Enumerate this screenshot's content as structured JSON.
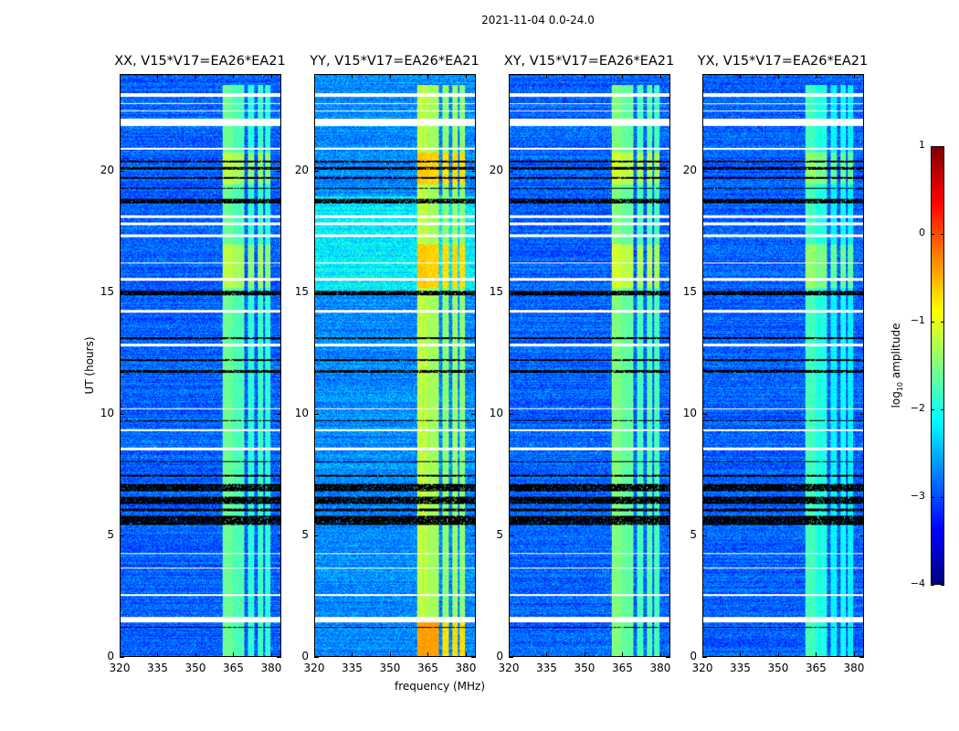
{
  "chart_data": {
    "type": "heatmap",
    "title": "2021-11-04 0.0-24.0",
    "xlabel": "frequency (MHz)",
    "ylabel": "UT (hours)",
    "xlim": [
      320,
      384
    ],
    "ylim": [
      0,
      24
    ],
    "xticks": [
      320,
      335,
      350,
      365,
      380
    ],
    "yticks": [
      0,
      5,
      10,
      15,
      20
    ],
    "colorbar": {
      "label": "log10 amplitude",
      "label_main": "log",
      "label_sub": "10",
      "label_rest": " amplitude",
      "range": [
        -4,
        1
      ],
      "ticks": [
        1,
        0,
        -1,
        -2,
        -3,
        -4
      ],
      "tick_labels": [
        "1",
        "0",
        "−1",
        "−2",
        "−3",
        "−4"
      ],
      "colormap": "jet"
    },
    "panels": [
      {
        "title": "XX, V15*V17=EA26*EA21",
        "base": -2.9,
        "band_level": -1.6,
        "high_level": -1.2,
        "bg_boost": 0
      },
      {
        "title": "YY, V15*V17=EA26*EA21",
        "base": -2.7,
        "band_level": -1.2,
        "high_level": -0.6,
        "bg_boost": 0.5
      },
      {
        "title": "XY, V15*V17=EA26*EA21",
        "base": -2.9,
        "band_level": -1.5,
        "high_level": -1.1,
        "bg_boost": 0
      },
      {
        "title": "YX, V15*V17=EA26*EA21",
        "base": -2.9,
        "band_level": -1.8,
        "high_level": -1.4,
        "bg_boost": 0
      }
    ],
    "rfi_bands_mhz": [
      [
        361,
        365,
        1
      ],
      [
        365,
        369.5,
        0.9
      ],
      [
        371,
        373.5,
        0.8
      ],
      [
        375,
        377,
        0.85
      ],
      [
        378,
        380,
        0.8
      ]
    ],
    "high_epochs_hours": [
      [
        15.2,
        17
      ],
      [
        19.5,
        20.8
      ],
      [
        0,
        1.4
      ]
    ],
    "flagged_white_hours": [
      [
        1.4,
        1.6
      ],
      [
        2.5,
        2.55
      ],
      [
        3.6,
        3.65
      ],
      [
        4.2,
        4.25
      ],
      [
        8.5,
        8.6
      ],
      [
        9.3,
        9.35
      ],
      [
        10.2,
        10.25
      ],
      [
        12.8,
        12.9
      ],
      [
        14.2,
        14.3
      ],
      [
        15.5,
        15.6
      ],
      [
        16.2,
        16.25
      ],
      [
        17.3,
        17.4
      ],
      [
        17.8,
        17.9
      ],
      [
        18.1,
        18.2
      ],
      [
        20.9,
        21
      ],
      [
        21.9,
        22.2
      ],
      [
        22.5,
        22.55
      ],
      [
        22.8,
        22.85
      ],
      [
        23.1,
        23.25
      ]
    ],
    "flagged_black_hours": [
      [
        1.15,
        1.2
      ],
      [
        5.4,
        5.8
      ],
      [
        6.0,
        6.1
      ],
      [
        6.3,
        6.6
      ],
      [
        6.8,
        7.1
      ],
      [
        7.4,
        7.5
      ],
      [
        8.0,
        8.05
      ],
      [
        9.7,
        9.75
      ],
      [
        11.7,
        11.8
      ],
      [
        12.2,
        12.25
      ],
      [
        13.1,
        13.15
      ],
      [
        14.9,
        15.1
      ],
      [
        18.7,
        18.9
      ],
      [
        19.3,
        19.35
      ],
      [
        19.7,
        19.8
      ],
      [
        20.1,
        20.2
      ],
      [
        20.4,
        20.45
      ]
    ]
  }
}
